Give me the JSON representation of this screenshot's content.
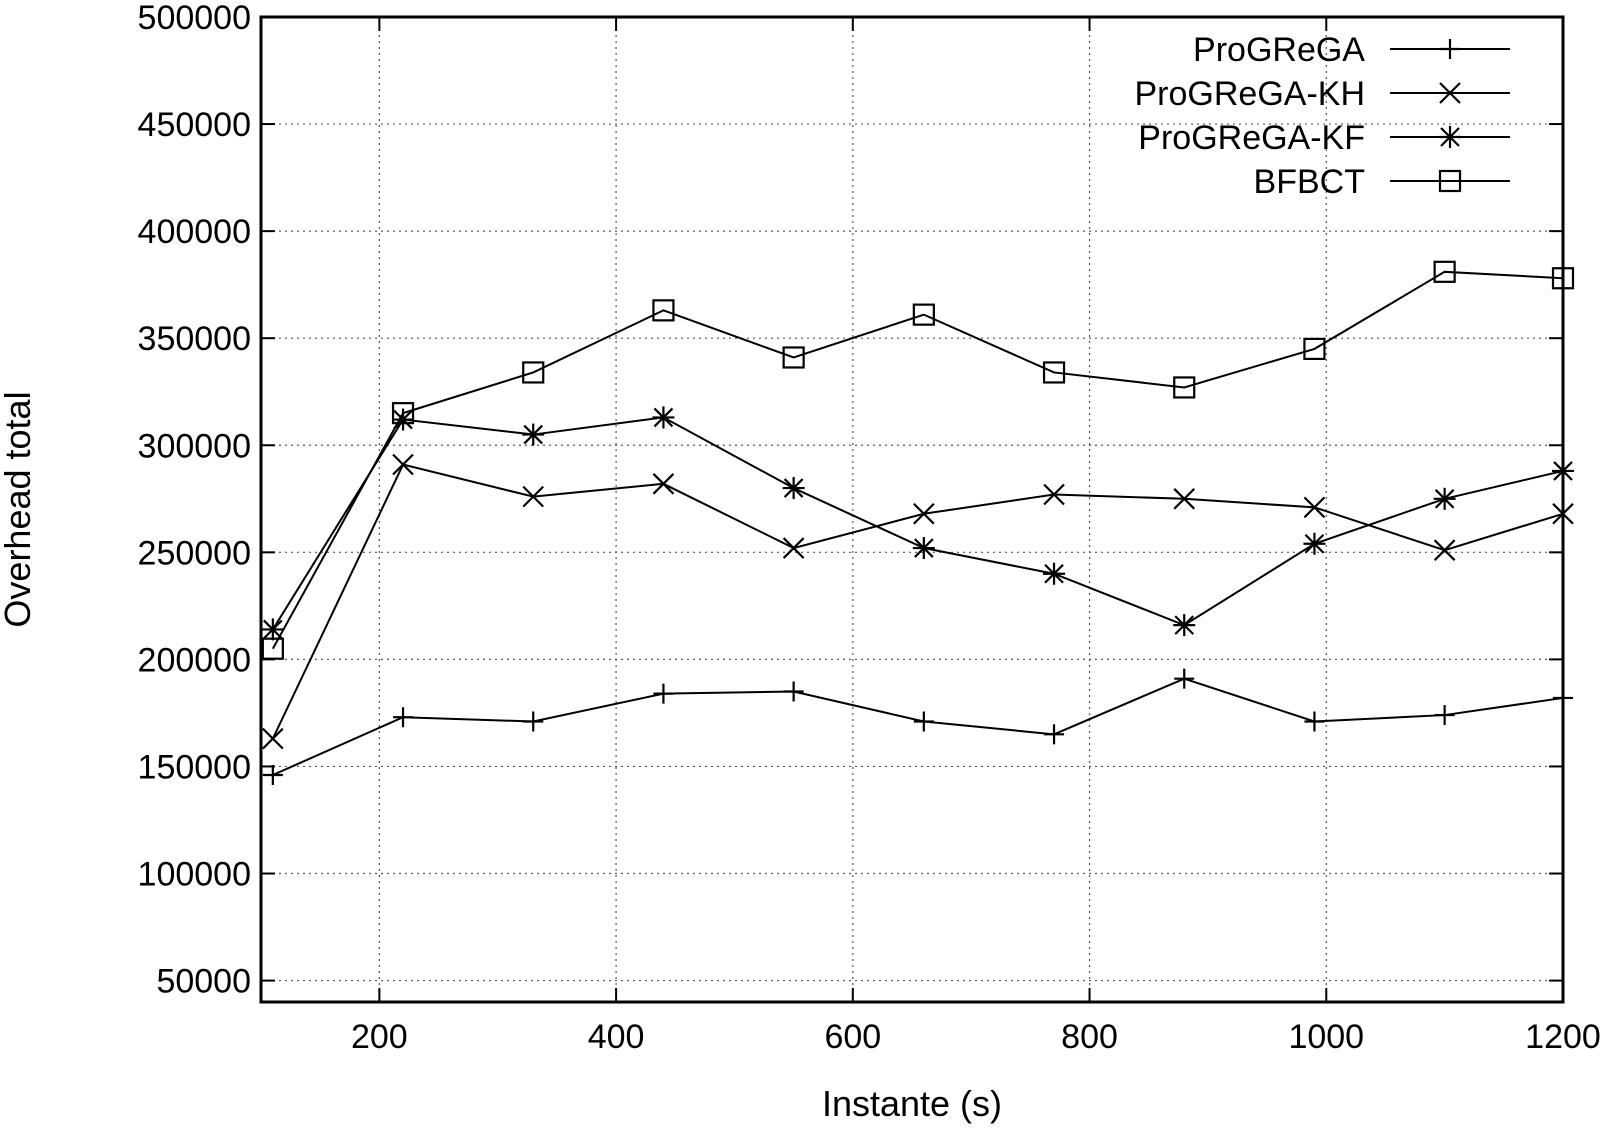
{
  "chart_data": {
    "type": "line",
    "title": "",
    "xlabel": "Instante (s)",
    "ylabel": "Overhead total",
    "xlim": [
      100,
      1200
    ],
    "ylim": [
      40000,
      500000
    ],
    "x_ticks": [
      200,
      400,
      600,
      800,
      1000,
      1200
    ],
    "y_ticks": [
      50000,
      100000,
      150000,
      200000,
      250000,
      300000,
      350000,
      400000,
      450000,
      500000
    ],
    "grid": true,
    "legend_position": "top-right",
    "x": [
      110,
      220,
      330,
      440,
      550,
      660,
      770,
      880,
      990,
      1100,
      1200
    ],
    "series": [
      {
        "name": "ProGReGA",
        "marker": "plus",
        "values": [
          146000,
          173000,
          171000,
          184000,
          185000,
          171000,
          165000,
          191000,
          171000,
          174000,
          182000
        ]
      },
      {
        "name": "ProGReGA-KH",
        "marker": "cross",
        "values": [
          163000,
          291000,
          276000,
          282000,
          252000,
          268000,
          277000,
          275000,
          271000,
          251000,
          268000
        ]
      },
      {
        "name": "ProGReGA-KF",
        "marker": "star",
        "values": [
          214000,
          312000,
          305000,
          313000,
          280000,
          252000,
          240000,
          216000,
          254000,
          275000,
          288000
        ]
      },
      {
        "name": "BFBCT",
        "marker": "square",
        "values": [
          205000,
          315000,
          334000,
          363000,
          341000,
          361000,
          334000,
          327000,
          345000,
          381000,
          378000
        ]
      }
    ]
  }
}
